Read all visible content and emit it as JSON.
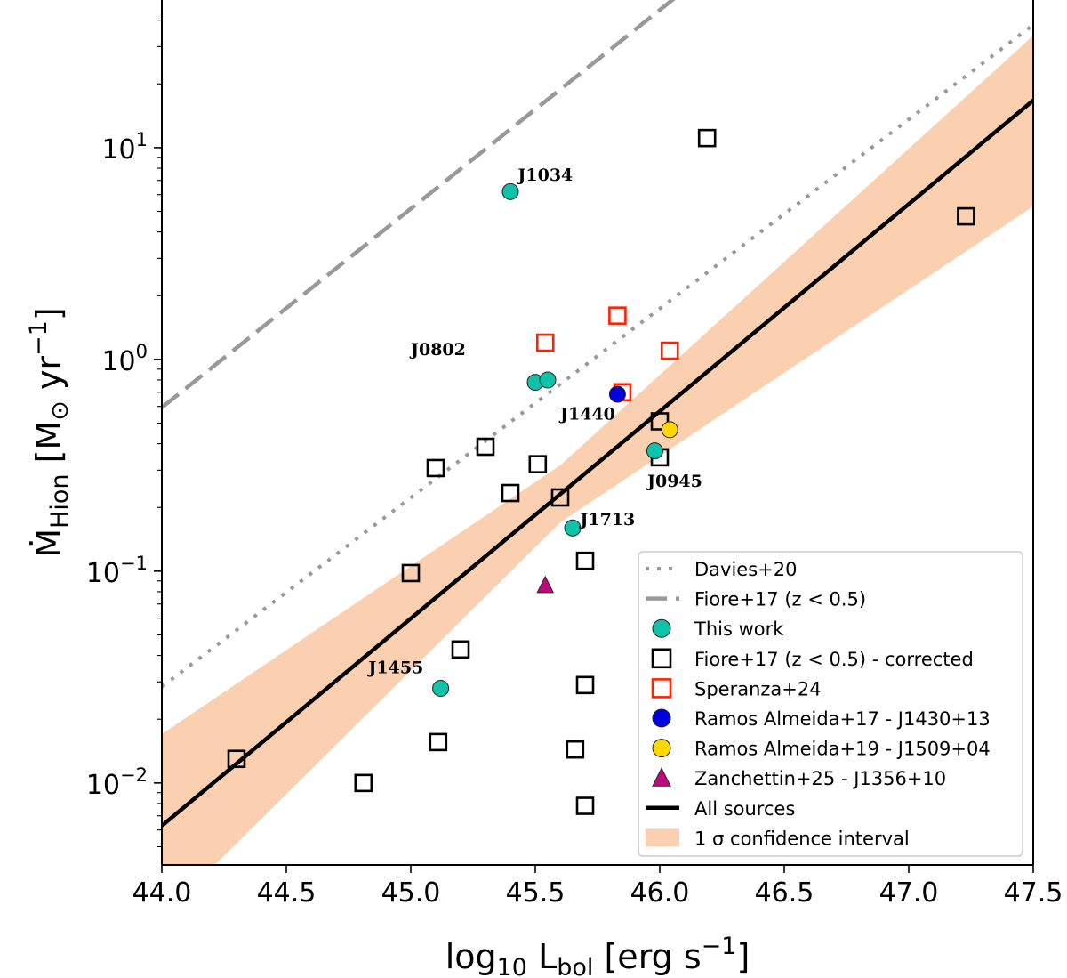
{
  "chart_data": {
    "type": "scatter",
    "xlabel": {
      "main": "log",
      "sub": "10",
      "rest": " L",
      "rest_sub": "bol",
      "unit": " [erg s",
      "sup": "−1",
      "close": "]"
    },
    "ylabel": {
      "main": "Ṁ",
      "sub": "Hion",
      "unit": " [M",
      "sun": "⊙",
      "unit2": " yr",
      "sup": "−1",
      "close": "]"
    },
    "xlim": [
      44.0,
      47.5
    ],
    "ylim": [
      0.0041,
      49.8
    ],
    "yscale": "log",
    "x_ticks": [
      "44.0",
      "44.5",
      "45.0",
      "45.5",
      "46.0",
      "46.5",
      "47.0",
      "47.5"
    ],
    "y_ticks": [
      {
        "value": 0.01,
        "base": "10",
        "exp": "−2"
      },
      {
        "value": 0.1,
        "base": "10",
        "exp": "−1"
      },
      {
        "value": 1,
        "base": "10",
        "exp": "0"
      },
      {
        "value": 10,
        "base": "10",
        "exp": "1"
      }
    ],
    "grid": false,
    "legend_placement": "bottom-right",
    "colors": {
      "this_work": "#10c2aa",
      "fiore": "#000000",
      "speranza": "#ff2200",
      "ramos17": "#0000dd",
      "ramos19": "#ffd700",
      "zanchettin": "#c0087f",
      "fit": "#000000",
      "band": "#fbd0b0",
      "ref_lines": "#999999"
    },
    "lines": [
      {
        "name": "Davies+20",
        "style": "dotted",
        "x": [
          44.0,
          47.5
        ],
        "log10_y": [
          -1.546,
          1.58
        ]
      },
      {
        "name": "Fiore+17 (z < 0.5)",
        "style": "dashed",
        "x": [
          44.0,
          46.05
        ],
        "log10_y": [
          -0.227,
          1.697
        ]
      },
      {
        "name": "All sources",
        "style": "solid",
        "x": [
          44.0,
          47.5
        ],
        "log10_y": [
          -2.202,
          1.223
        ]
      }
    ],
    "band": {
      "name": "1 σ confidence interval",
      "x": [
        44.0,
        45.6,
        47.5
      ],
      "log10_upper": [
        -1.769,
        -0.5,
        1.529
      ],
      "log10_lower": [
        -2.635,
        -0.77,
        0.723
      ]
    },
    "series": [
      {
        "name": "This work",
        "marker": "circle",
        "color_key": "this_work",
        "x": [
          45.4,
          45.5,
          45.55,
          45.98,
          45.65,
          45.12
        ],
        "y": [
          6.2,
          0.78,
          0.8,
          0.37,
          0.16,
          0.028
        ]
      },
      {
        "name": "Fiore+17 (z < 0.5) - corrected",
        "marker": "square-open",
        "color_key": "fiore",
        "x": [
          46.19,
          47.23,
          46.0,
          46.0,
          45.3,
          45.1,
          45.51,
          45.4,
          45.6,
          45.7,
          45.0,
          45.2,
          45.7,
          45.11,
          45.66,
          44.3,
          44.81,
          45.7
        ],
        "y": [
          11.1,
          4.74,
          0.51,
          0.345,
          0.387,
          0.307,
          0.32,
          0.234,
          0.223,
          0.112,
          0.098,
          0.0427,
          0.029,
          0.0156,
          0.0144,
          0.013,
          0.01,
          0.0078
        ]
      },
      {
        "name": "Speranza+24",
        "marker": "square-open",
        "color_key": "speranza",
        "x": [
          45.54,
          45.83,
          46.04,
          45.85
        ],
        "y": [
          1.2,
          1.61,
          1.1,
          0.7
        ]
      },
      {
        "name": "Ramos Almeida+17 - J1430+13",
        "marker": "circle",
        "color_key": "ramos17",
        "x": [
          45.83
        ],
        "y": [
          0.685
        ]
      },
      {
        "name": "Ramos Almeida+19 - J1509+04",
        "marker": "circle",
        "color_key": "ramos19",
        "x": [
          46.04
        ],
        "y": [
          0.466
        ]
      },
      {
        "name": "Zanchettin+25 - J1356+10",
        "marker": "triangle",
        "color_key": "zanchettin",
        "x": [
          45.54
        ],
        "y": [
          0.0857
        ]
      }
    ],
    "annotations": [
      {
        "text": "J1034",
        "x": 45.43,
        "y": 7.0
      },
      {
        "text": "J0802",
        "x": 45.0,
        "y": 1.05
      },
      {
        "text": "J1440",
        "x": 45.6,
        "y": 0.52
      },
      {
        "text": "J0945",
        "x": 45.95,
        "y": 0.25
      },
      {
        "text": "J1713",
        "x": 45.68,
        "y": 0.165
      },
      {
        "text": "J1455",
        "x": 44.83,
        "y": 0.033
      }
    ],
    "legend": [
      "Davies+20",
      "Fiore+17 (z < 0.5)",
      "This work",
      "Fiore+17 (z < 0.5) - corrected",
      "Speranza+24",
      "Ramos Almeida+17 - J1430+13",
      "Ramos Almeida+19 - J1509+04",
      "Zanchettin+25 - J1356+10",
      "All sources",
      "1 σ confidence interval"
    ]
  }
}
